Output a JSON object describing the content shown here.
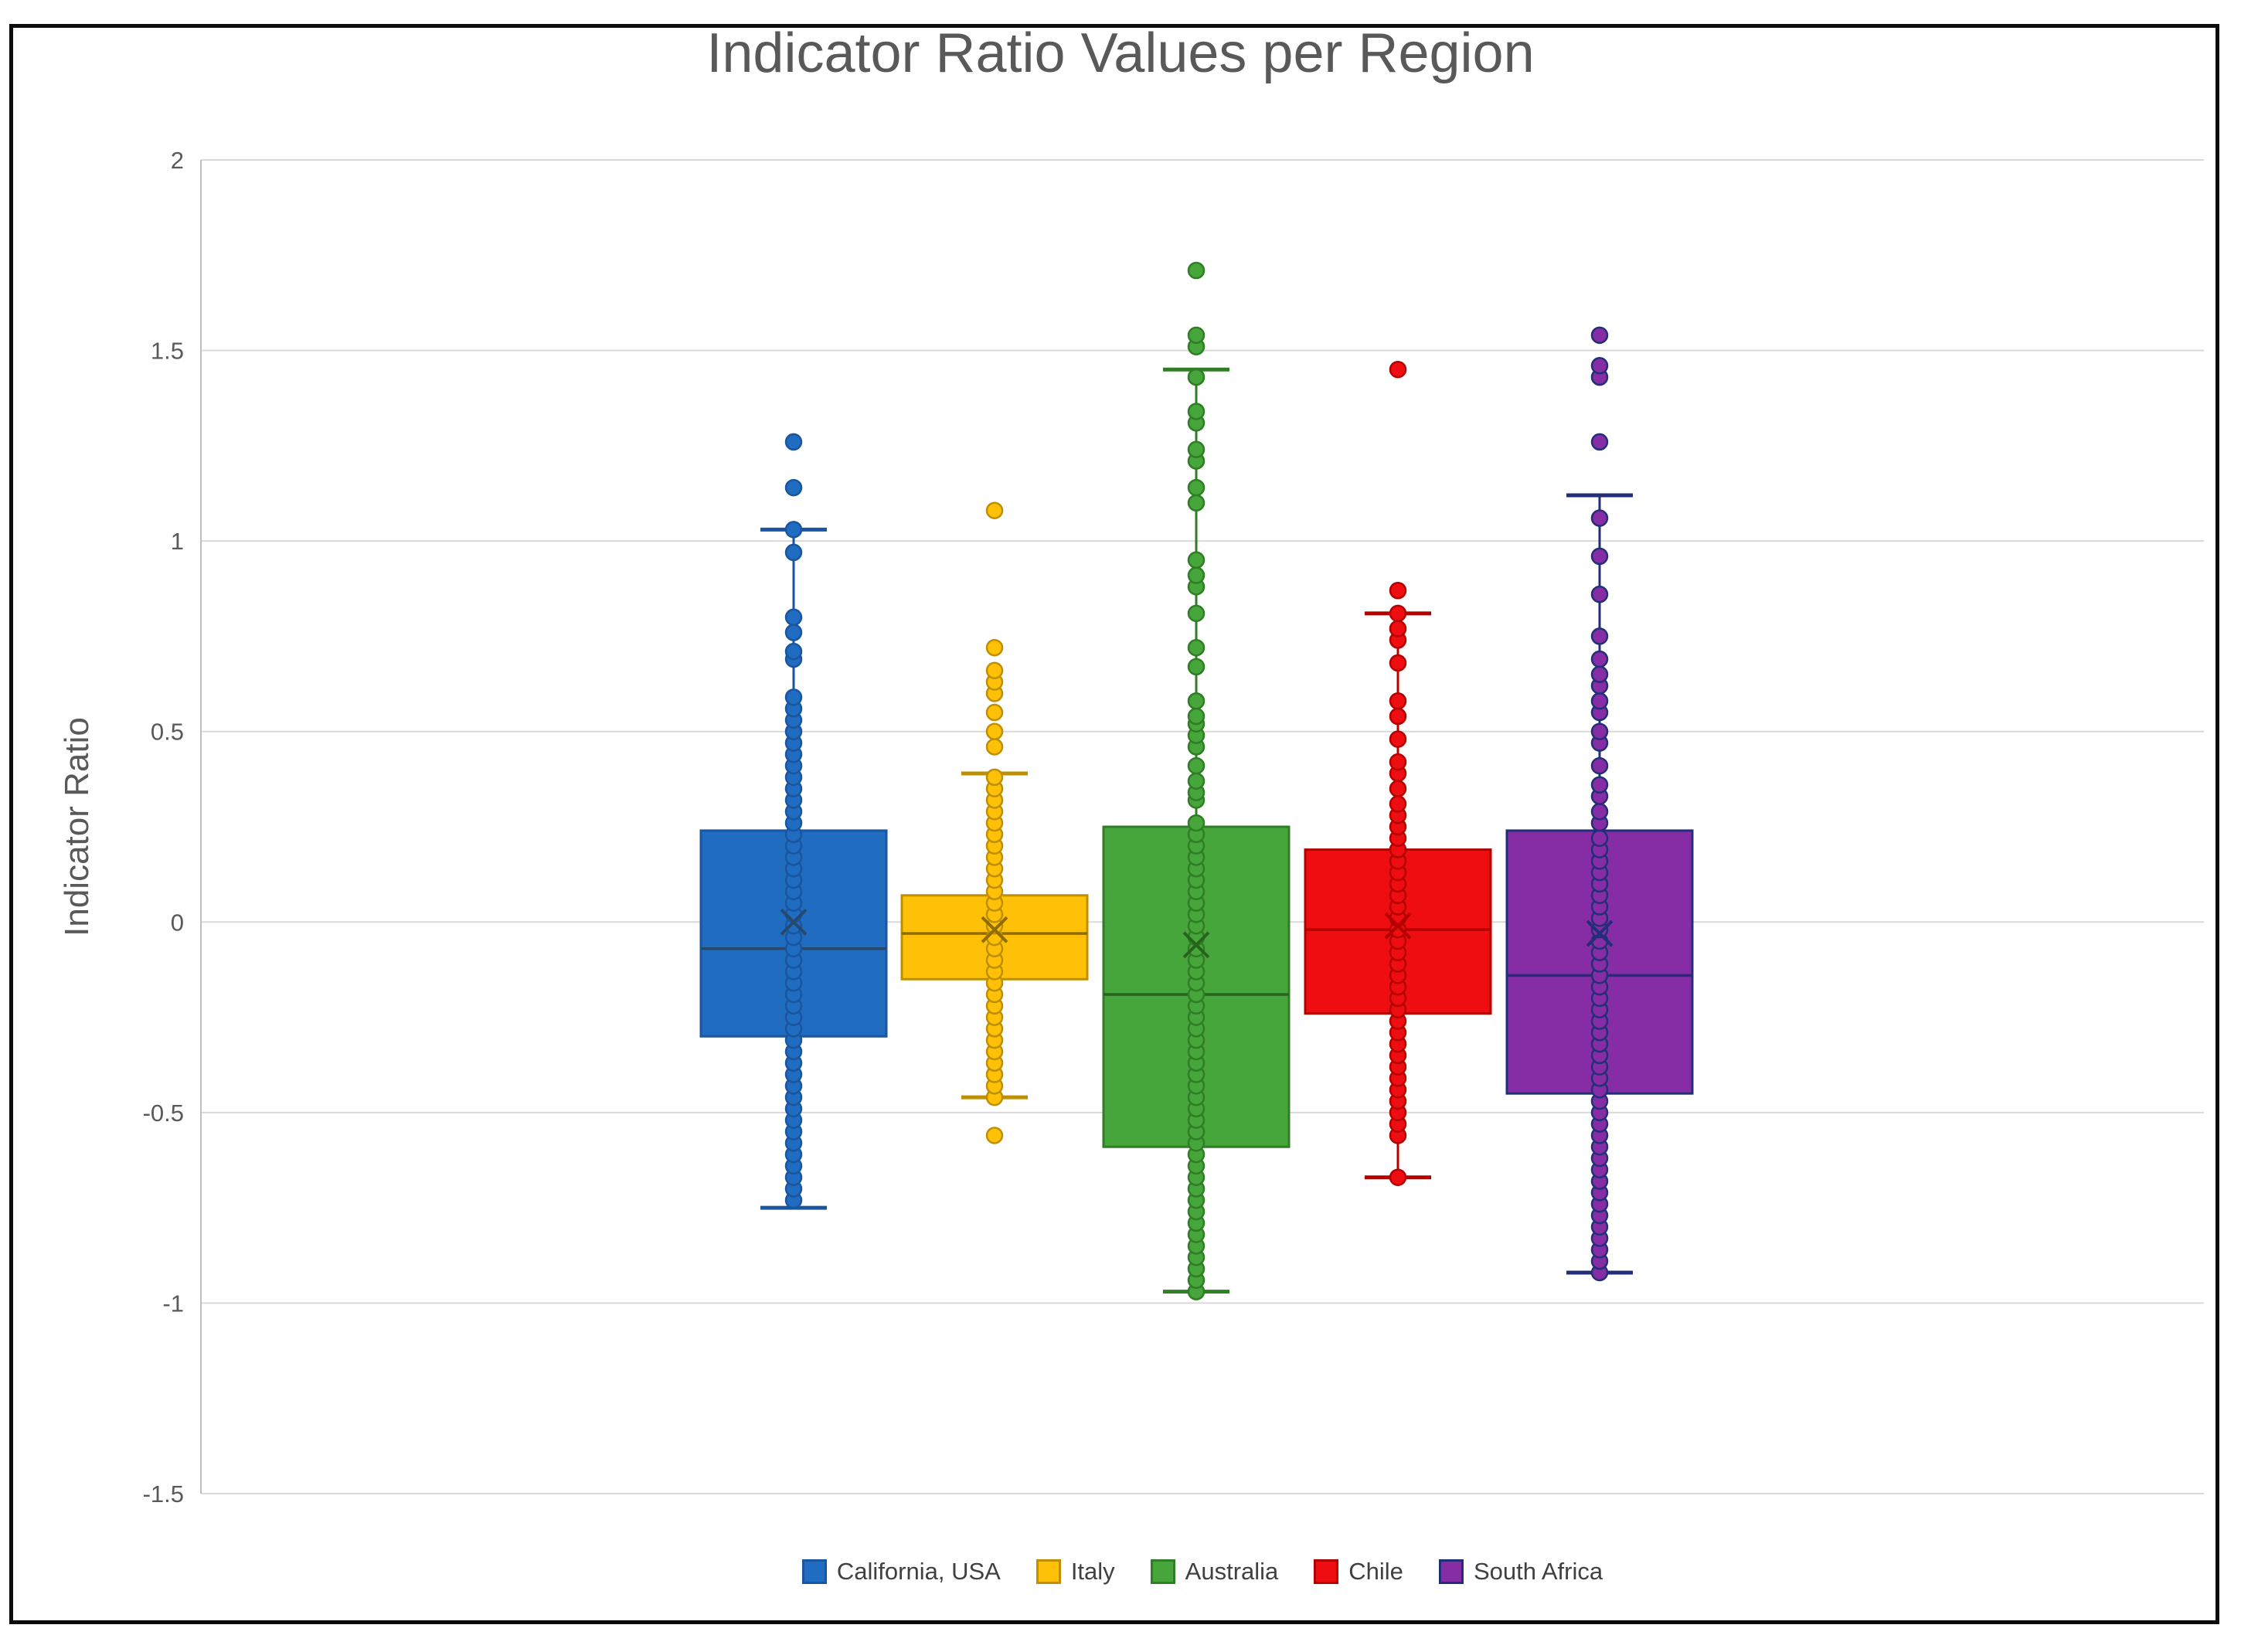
{
  "chart_data": {
    "type": "boxplot",
    "title": "Indicator Ratio Values per Region",
    "ylabel": "Indicator Ratio",
    "ylim": [
      -1.5,
      2
    ],
    "yticks": [
      2,
      1.5,
      1,
      0.5,
      0,
      -0.5,
      -1,
      -1.5
    ],
    "grid": true,
    "legend_position": "bottom",
    "style": {
      "grid_color": "#D9D9D9",
      "axis_line_color": "#BFBFBF",
      "tick_label_color": "#595959",
      "title_color": "#595959",
      "legend_text_color": "#404040",
      "frame_color": "#0b0b0b",
      "background": "#ffffff"
    },
    "series": [
      {
        "name": "California, USA",
        "slug": "california-usa",
        "fill": "#1F6CC0",
        "stroke": "#1A55A0",
        "dark": "#27496E",
        "stats": {
          "whisker_low": -0.75,
          "q1": -0.3,
          "median": -0.07,
          "q3": 0.24,
          "whisker_high": 1.03,
          "mean": 0.0
        },
        "points": [
          -0.73,
          -0.7,
          -0.67,
          -0.64,
          -0.61,
          -0.58,
          -0.55,
          -0.52,
          -0.49,
          -0.46,
          -0.43,
          -0.4,
          -0.37,
          -0.34,
          -0.31,
          -0.28,
          -0.25,
          -0.22,
          -0.19,
          -0.16,
          -0.13,
          -0.1,
          -0.07,
          -0.04,
          -0.01,
          0.02,
          0.05,
          0.08,
          0.11,
          0.14,
          0.17,
          0.2,
          0.23,
          0.26,
          0.29,
          0.32,
          0.35,
          0.38,
          0.41,
          0.44,
          0.47,
          0.5,
          0.53,
          0.56,
          0.59,
          0.69,
          0.71,
          0.76,
          0.8,
          0.97,
          1.03,
          1.14,
          1.26
        ]
      },
      {
        "name": "Italy",
        "slug": "italy",
        "fill": "#FFC008",
        "stroke": "#BE8F00",
        "dark": "#8F6C00",
        "stats": {
          "whisker_low": -0.46,
          "q1": -0.15,
          "median": -0.03,
          "q3": 0.07,
          "whisker_high": 0.39,
          "mean": -0.02
        },
        "points": [
          -0.56,
          -0.46,
          -0.43,
          -0.4,
          -0.37,
          -0.34,
          -0.31,
          -0.28,
          -0.25,
          -0.22,
          -0.19,
          -0.16,
          -0.13,
          -0.1,
          -0.07,
          -0.04,
          -0.01,
          0.02,
          0.05,
          0.08,
          0.11,
          0.14,
          0.17,
          0.2,
          0.23,
          0.26,
          0.29,
          0.32,
          0.35,
          0.38,
          0.46,
          0.5,
          0.55,
          0.6,
          0.63,
          0.66,
          0.72,
          1.08
        ]
      },
      {
        "name": "Australia",
        "slug": "australia",
        "fill": "#47A63B",
        "stroke": "#2F7D24",
        "dark": "#27631D",
        "stats": {
          "whisker_low": -0.97,
          "q1": -0.59,
          "median": -0.19,
          "q3": 0.25,
          "whisker_high": 1.45,
          "mean": -0.06
        },
        "points": [
          -0.97,
          -0.94,
          -0.91,
          -0.88,
          -0.85,
          -0.82,
          -0.79,
          -0.76,
          -0.73,
          -0.7,
          -0.67,
          -0.64,
          -0.61,
          -0.58,
          -0.55,
          -0.52,
          -0.49,
          -0.46,
          -0.43,
          -0.4,
          -0.37,
          -0.34,
          -0.31,
          -0.28,
          -0.25,
          -0.22,
          -0.19,
          -0.16,
          -0.13,
          -0.1,
          -0.07,
          -0.04,
          -0.01,
          0.02,
          0.05,
          0.08,
          0.11,
          0.14,
          0.17,
          0.2,
          0.23,
          0.26,
          0.32,
          0.34,
          0.37,
          0.41,
          0.46,
          0.49,
          0.52,
          0.54,
          0.58,
          0.67,
          0.72,
          0.81,
          0.88,
          0.91,
          0.95,
          1.1,
          1.14,
          1.21,
          1.24,
          1.31,
          1.34,
          1.43,
          1.51,
          1.54,
          1.71
        ]
      },
      {
        "name": "Chile",
        "slug": "chile",
        "fill": "#EE0E11",
        "stroke": "#B50000",
        "dark": "#B50000",
        "stats": {
          "whisker_low": -0.67,
          "q1": -0.24,
          "median": -0.02,
          "q3": 0.19,
          "whisker_high": 0.81,
          "mean": -0.01
        },
        "points": [
          -0.67,
          -0.56,
          -0.53,
          -0.5,
          -0.47,
          -0.44,
          -0.41,
          -0.38,
          -0.35,
          -0.32,
          -0.29,
          -0.26,
          -0.23,
          -0.2,
          -0.17,
          -0.14,
          -0.11,
          -0.08,
          -0.05,
          -0.02,
          0.01,
          0.04,
          0.07,
          0.1,
          0.13,
          0.16,
          0.19,
          0.22,
          0.25,
          0.28,
          0.31,
          0.35,
          0.39,
          0.42,
          0.48,
          0.54,
          0.58,
          0.68,
          0.74,
          0.77,
          0.81,
          0.87,
          1.45
        ]
      },
      {
        "name": "South Africa",
        "slug": "south-africa",
        "fill": "#862DA6",
        "stroke": "#232E78",
        "dark": "#232E78",
        "stats": {
          "whisker_low": -0.92,
          "q1": -0.45,
          "median": -0.14,
          "q3": 0.24,
          "whisker_high": 1.12,
          "mean": -0.03
        },
        "points": [
          -0.92,
          -0.89,
          -0.86,
          -0.83,
          -0.8,
          -0.77,
          -0.74,
          -0.71,
          -0.68,
          -0.65,
          -0.62,
          -0.59,
          -0.56,
          -0.53,
          -0.5,
          -0.47,
          -0.44,
          -0.41,
          -0.38,
          -0.35,
          -0.32,
          -0.29,
          -0.26,
          -0.23,
          -0.2,
          -0.17,
          -0.14,
          -0.11,
          -0.08,
          -0.05,
          -0.02,
          0.01,
          0.04,
          0.07,
          0.1,
          0.13,
          0.16,
          0.19,
          0.22,
          0.26,
          0.29,
          0.33,
          0.36,
          0.41,
          0.47,
          0.5,
          0.55,
          0.58,
          0.62,
          0.65,
          0.69,
          0.75,
          0.86,
          0.96,
          1.06,
          1.26,
          1.43,
          1.46,
          1.54
        ]
      }
    ]
  }
}
